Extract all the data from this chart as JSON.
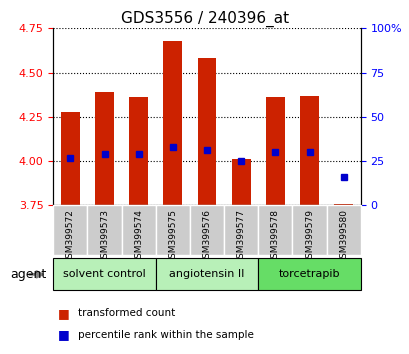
{
  "title": "GDS3556 / 240396_at",
  "samples": [
    "GSM399572",
    "GSM399573",
    "GSM399574",
    "GSM399575",
    "GSM399576",
    "GSM399577",
    "GSM399578",
    "GSM399579",
    "GSM399580"
  ],
  "bar_tops": [
    4.28,
    4.39,
    4.36,
    4.68,
    4.58,
    4.01,
    4.36,
    4.37,
    3.76
  ],
  "bar_bottom": 3.75,
  "blue_values": [
    4.02,
    4.04,
    4.04,
    4.08,
    4.06,
    4.0,
    4.05,
    4.05,
    3.91
  ],
  "ylim_left": [
    3.75,
    4.75
  ],
  "ylim_right": [
    0,
    100
  ],
  "yticks_left": [
    3.75,
    4.0,
    4.25,
    4.5,
    4.75
  ],
  "yticks_right": [
    0,
    25,
    50,
    75,
    100
  ],
  "bar_color": "#CC2200",
  "blue_color": "#0000CC",
  "bar_width": 0.55,
  "agent_label": "agent",
  "legend_red": "transformed count",
  "legend_blue": "percentile rank within the sample",
  "group_configs": [
    {
      "label": "solvent control",
      "indices": [
        0,
        1,
        2
      ],
      "color": "#b8f0b8"
    },
    {
      "label": "angiotensin II",
      "indices": [
        3,
        4,
        5
      ],
      "color": "#b8f0b8"
    },
    {
      "label": "torcetrapib",
      "indices": [
        6,
        7,
        8
      ],
      "color": "#66DD66"
    }
  ]
}
